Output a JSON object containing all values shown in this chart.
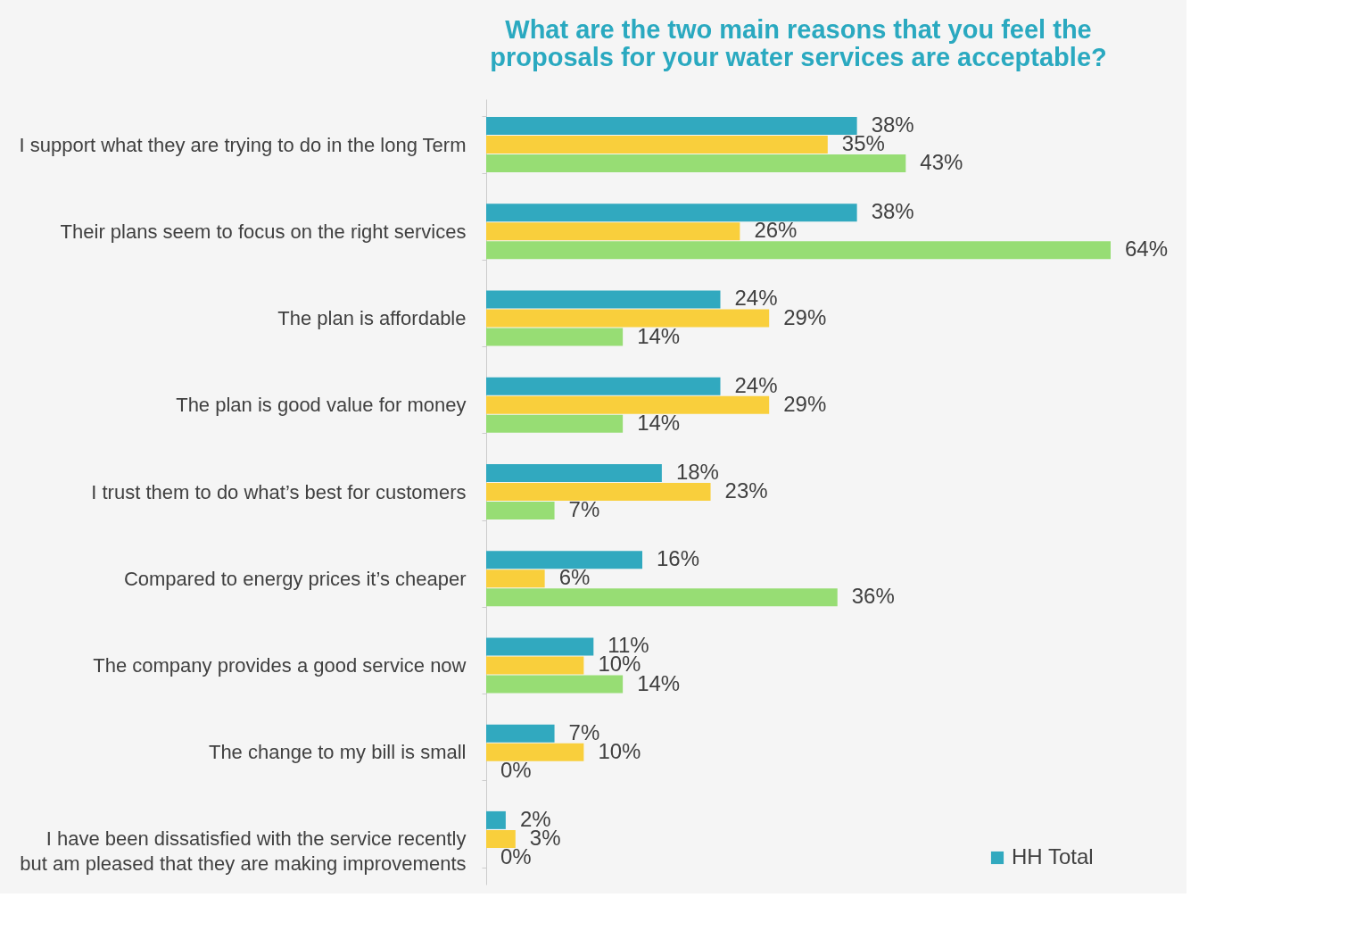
{
  "chart_data": {
    "type": "bar",
    "orientation": "horizontal",
    "title": "What are the two main reasons that you feel the proposals for your water services are acceptable?",
    "categories": [
      "I support what they are trying to do in the long Term",
      "Their plans seem to focus on the right services",
      "The plan is affordable",
      "The plan is good value for money",
      "I trust them to do what’s best for customers",
      "Compared to energy prices it’s cheaper",
      "The company provides a good service now",
      "The change to my bill is small",
      "I have been dissatisfied with the service recently but am pleased that they are making improvements"
    ],
    "series": [
      {
        "name": "HH Total",
        "color": "#31a9bf",
        "values": [
          38,
          38,
          24,
          24,
          18,
          16,
          11,
          7,
          2
        ],
        "value_labels": [
          "38%",
          "38%",
          "24%",
          "24%",
          "18%",
          "16%",
          "11%",
          "7%",
          "2%"
        ]
      },
      {
        "color": "#f9cf3c",
        "values": [
          35,
          26,
          29,
          29,
          23,
          6,
          10,
          10,
          3
        ],
        "value_labels": [
          "35%",
          "26%",
          "29%",
          "29%",
          "23%",
          "6%",
          "10%",
          "10%",
          "3%"
        ]
      },
      {
        "color": "#97dd74",
        "values": [
          43,
          64,
          14,
          14,
          7,
          36,
          14,
          0,
          0
        ],
        "value_labels": [
          "43%",
          "64%",
          "14%",
          "14%",
          "7%",
          "36%",
          "14%",
          "0%",
          "0%"
        ]
      }
    ],
    "legend": "bottom right",
    "grid": false
  }
}
